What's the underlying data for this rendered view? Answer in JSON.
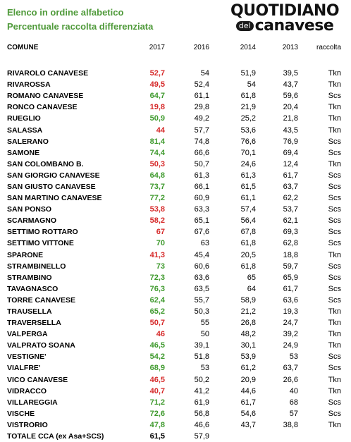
{
  "header": {
    "line1": "Elenco in ordine alfabetico",
    "line2": "Percentuale raccolta differenziata"
  },
  "logo": {
    "top": "QUOTIDIANO",
    "del": "del",
    "bottom": "canavese"
  },
  "columns": [
    "COMUNE",
    "2017",
    "2016",
    "2014",
    "2013",
    "raccolta"
  ],
  "colors": {
    "red": "#d62a2a",
    "green": "#3f9a2e",
    "title_green": "#4f9a3a"
  },
  "rows": [
    {
      "name": "RIVAROLO CANAVESE",
      "y2017": "52,7",
      "c": "red",
      "y2016": "54",
      "y2014": "51,9",
      "y2013": "39,5",
      "r": "Tkn"
    },
    {
      "name": "RIVAROSSA",
      "y2017": "49,5",
      "c": "red",
      "y2016": "52,4",
      "y2014": "54",
      "y2013": "43,7",
      "r": "Tkn"
    },
    {
      "name": "ROMANO CANAVESE",
      "y2017": "64,7",
      "c": "green",
      "y2016": "61,1",
      "y2014": "61,8",
      "y2013": "59,6",
      "r": "Scs"
    },
    {
      "name": "RONCO CANAVESE",
      "y2017": "19,8",
      "c": "red",
      "y2016": "29,8",
      "y2014": "21,9",
      "y2013": "20,4",
      "r": "Tkn"
    },
    {
      "name": "RUEGLIO",
      "y2017": "50,9",
      "c": "green",
      "y2016": "49,2",
      "y2014": "25,2",
      "y2013": "21,8",
      "r": "Tkn"
    },
    {
      "name": "SALASSA",
      "y2017": "44",
      "c": "red",
      "y2016": "57,7",
      "y2014": "53,6",
      "y2013": "43,5",
      "r": "Tkn"
    },
    {
      "name": "SALERANO",
      "y2017": "81,4",
      "c": "green",
      "y2016": "74,8",
      "y2014": "76,6",
      "y2013": "76,9",
      "r": "Scs"
    },
    {
      "name": "SAMONE",
      "y2017": "74,4",
      "c": "green",
      "y2016": "66,6",
      "y2014": "70,1",
      "y2013": "69,4",
      "r": "Scs"
    },
    {
      "name": "SAN COLOMBANO B.",
      "y2017": "50,3",
      "c": "red",
      "y2016": "50,7",
      "y2014": "24,6",
      "y2013": "12,4",
      "r": "Tkn"
    },
    {
      "name": "SAN GIORGIO CANAVESE",
      "y2017": "64,8",
      "c": "green",
      "y2016": "61,3",
      "y2014": "61,3",
      "y2013": "61,7",
      "r": "Scs"
    },
    {
      "name": "SAN GIUSTO CANAVESE",
      "y2017": "73,7",
      "c": "green",
      "y2016": "66,1",
      "y2014": "61,5",
      "y2013": "63,7",
      "r": "Scs"
    },
    {
      "name": "SAN MARTINO CANAVESE",
      "y2017": "77,2",
      "c": "green",
      "y2016": "60,9",
      "y2014": "61,1",
      "y2013": "62,2",
      "r": "Scs"
    },
    {
      "name": "SAN PONSO",
      "y2017": "53,8",
      "c": "red",
      "y2016": "63,3",
      "y2014": "57,4",
      "y2013": "53,7",
      "r": "Scs"
    },
    {
      "name": "SCARMAGNO",
      "y2017": "58,2",
      "c": "red",
      "y2016": "65,1",
      "y2014": "56,4",
      "y2013": "62,1",
      "r": "Scs"
    },
    {
      "name": "SETTIMO ROTTARO",
      "y2017": "67",
      "c": "red",
      "y2016": "67,6",
      "y2014": "67,8",
      "y2013": "69,3",
      "r": "Scs"
    },
    {
      "name": "SETTIMO VITTONE",
      "y2017": "70",
      "c": "green",
      "y2016": "63",
      "y2014": "61,8",
      "y2013": "62,8",
      "r": "Scs"
    },
    {
      "name": "SPARONE",
      "y2017": "41,3",
      "c": "red",
      "y2016": "45,4",
      "y2014": "20,5",
      "y2013": "18,8",
      "r": "Tkn"
    },
    {
      "name": "STRAMBINELLO",
      "y2017": "73",
      "c": "green",
      "y2016": "60,6",
      "y2014": "61,8",
      "y2013": "59,7",
      "r": "Scs"
    },
    {
      "name": "STRAMBINO",
      "y2017": "72,3",
      "c": "green",
      "y2016": "63,6",
      "y2014": "65",
      "y2013": "65,9",
      "r": "Scs"
    },
    {
      "name": "TAVAGNASCO",
      "y2017": "76,3",
      "c": "green",
      "y2016": "63,5",
      "y2014": "64",
      "y2013": "61,7",
      "r": "Scs"
    },
    {
      "name": "TORRE CANAVESE",
      "y2017": "62,4",
      "c": "green",
      "y2016": "55,7",
      "y2014": "58,9",
      "y2013": "63,6",
      "r": "Scs"
    },
    {
      "name": "TRAUSELLA",
      "y2017": "65,2",
      "c": "green",
      "y2016": "50,3",
      "y2014": "21,2",
      "y2013": "19,3",
      "r": "Tkn"
    },
    {
      "name": "TRAVERSELLA",
      "y2017": "50,7",
      "c": "red",
      "y2016": "55",
      "y2014": "26,8",
      "y2013": "24,7",
      "r": "Tkn"
    },
    {
      "name": "VALPERGA",
      "y2017": "46",
      "c": "red",
      "y2016": "50",
      "y2014": "48,2",
      "y2013": "39,2",
      "r": "Tkn"
    },
    {
      "name": "VALPRATO SOANA",
      "y2017": "46,5",
      "c": "green",
      "y2016": "39,1",
      "y2014": "30,1",
      "y2013": "24,9",
      "r": "Tkn"
    },
    {
      "name": "VESTIGNE'",
      "y2017": "54,2",
      "c": "green",
      "y2016": "51,8",
      "y2014": "53,9",
      "y2013": "53",
      "r": "Scs"
    },
    {
      "name": "VIALFRE'",
      "y2017": "68,9",
      "c": "green",
      "y2016": "53",
      "y2014": "61,2",
      "y2013": "63,7",
      "r": "Scs"
    },
    {
      "name": "VICO CANAVESE",
      "y2017": "46,5",
      "c": "red",
      "y2016": "50,2",
      "y2014": "20,9",
      "y2013": "26,6",
      "r": "Tkn"
    },
    {
      "name": "VIDRACCO",
      "y2017": "40,7",
      "c": "red",
      "y2016": "41,2",
      "y2014": "44,6",
      "y2013": "40",
      "r": "Tkn"
    },
    {
      "name": "VILLAREGGIA",
      "y2017": "71,2",
      "c": "green",
      "y2016": "61,9",
      "y2014": "61,7",
      "y2013": "68",
      "r": "Scs"
    },
    {
      "name": "VISCHE",
      "y2017": "72,6",
      "c": "green",
      "y2016": "56,8",
      "y2014": "54,6",
      "y2013": "57",
      "r": "Scs"
    },
    {
      "name": "VISTRORIO",
      "y2017": "47,8",
      "c": "green",
      "y2016": "46,6",
      "y2014": "43,7",
      "y2013": "38,8",
      "r": "Tkn"
    },
    {
      "name": "TOTALE CCA (ex Asa+SCS)",
      "y2017": "61,5",
      "c": "black",
      "y2016": "57,9",
      "y2014": "",
      "y2013": "",
      "r": ""
    }
  ]
}
